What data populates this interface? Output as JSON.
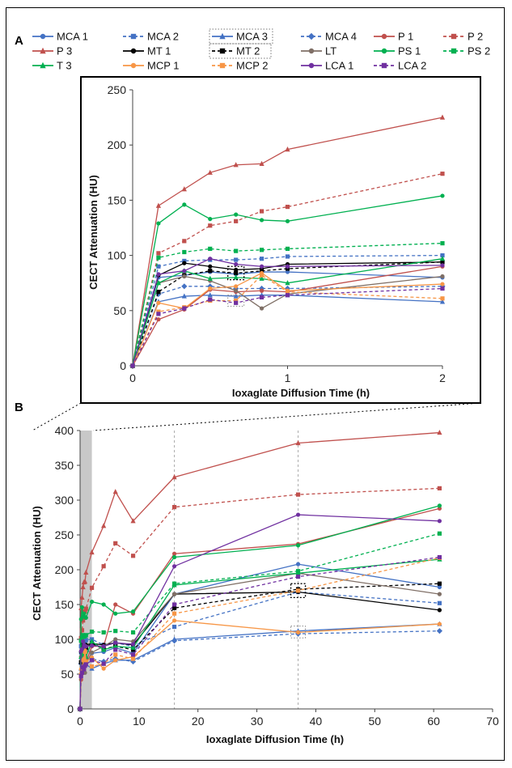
{
  "chart_data": [
    {
      "panel_label": "A",
      "type": "line",
      "xlabel": "Ioxaglate Diffusion Time (h)",
      "ylabel": "CECT Attenuation (HU)",
      "xlim": [
        0,
        2
      ],
      "ylim": [
        0,
        250
      ],
      "xticks": [
        "0",
        "1",
        "2"
      ],
      "yticks": [
        "0",
        "50",
        "100",
        "150",
        "200",
        "250"
      ],
      "grid": false,
      "legend_position": "top",
      "x": [
        0,
        0.1667,
        0.3333,
        0.5,
        0.6667,
        0.8333,
        1,
        2
      ],
      "series": [
        {
          "name": "MCA 1",
          "color": "#4472c4",
          "dash": false,
          "marker": "circle",
          "values": [
            0,
            80,
            82,
            85,
            83,
            85,
            85,
            80
          ]
        },
        {
          "name": "MCA 2",
          "color": "#4472c4",
          "dash": true,
          "marker": "square",
          "values": [
            0,
            90,
            95,
            96,
            96,
            97,
            99,
            100
          ]
        },
        {
          "name": "MCA 3",
          "color": "#4472c4",
          "dash": false,
          "marker": "triangle",
          "values": [
            0,
            58,
            63,
            64,
            63,
            64,
            64,
            58
          ]
        },
        {
          "name": "MCA 4",
          "color": "#4472c4",
          "dash": true,
          "marker": "diamond",
          "values": [
            0,
            65,
            72,
            72,
            70,
            70,
            70,
            72
          ]
        },
        {
          "name": "P 1",
          "color": "#c0504d",
          "dash": false,
          "marker": "circle",
          "values": [
            0,
            42,
            51,
            69,
            67,
            68,
            67,
            90
          ]
        },
        {
          "name": "P 2",
          "color": "#c0504d",
          "dash": true,
          "marker": "square",
          "values": [
            0,
            102,
            113,
            127,
            131,
            140,
            144,
            174
          ]
        },
        {
          "name": "P 3",
          "color": "#c0504d",
          "dash": false,
          "marker": "triangle",
          "values": [
            0,
            145,
            160,
            175,
            182,
            183,
            196,
            225
          ]
        },
        {
          "name": "MT 1",
          "color": "#000000",
          "dash": false,
          "marker": "circle",
          "values": [
            0,
            82,
            93,
            90,
            87,
            88,
            92,
            94
          ]
        },
        {
          "name": "MT 2",
          "color": "#000000",
          "dash": true,
          "marker": "square",
          "values": [
            0,
            67,
            82,
            86,
            84,
            86,
            88,
            94
          ]
        },
        {
          "name": "LT",
          "color": "#7f6f66",
          "dash": false,
          "marker": "circle",
          "values": [
            0,
            75,
            81,
            77,
            68,
            52,
            65,
            81
          ]
        },
        {
          "name": "PS 1",
          "color": "#00b050",
          "dash": false,
          "marker": "circle",
          "values": [
            0,
            129,
            146,
            133,
            137,
            132,
            131,
            154
          ]
        },
        {
          "name": "PS 2",
          "color": "#00b050",
          "dash": true,
          "marker": "square",
          "values": [
            0,
            98,
            103,
            106,
            104,
            105,
            106,
            111
          ]
        },
        {
          "name": "T 3",
          "color": "#00b050",
          "dash": false,
          "marker": "triangle",
          "values": [
            0,
            75,
            86,
            79,
            80,
            79,
            75,
            97
          ]
        },
        {
          "name": "MCP 1",
          "color": "#f79646",
          "dash": false,
          "marker": "circle",
          "values": [
            0,
            57,
            52,
            70,
            72,
            84,
            68,
            74
          ]
        },
        {
          "name": "MCP 2",
          "color": "#f79646",
          "dash": true,
          "marker": "square",
          "values": [
            0,
            49,
            53,
            59,
            59,
            82,
            67,
            61
          ]
        },
        {
          "name": "LCA 1",
          "color": "#7030a0",
          "dash": false,
          "marker": "circle",
          "values": [
            0,
            83,
            86,
            97,
            92,
            90,
            90,
            91
          ]
        },
        {
          "name": "LCA 2",
          "color": "#7030a0",
          "dash": true,
          "marker": "square",
          "values": [
            0,
            47,
            52,
            60,
            57,
            62,
            64,
            70
          ]
        }
      ]
    },
    {
      "panel_label": "B",
      "type": "line",
      "xlabel": "Ioxaglate Diffusion Time (h)",
      "ylabel": "CECT Attenuation (HU)",
      "xlim": [
        0,
        70
      ],
      "ylim": [
        0,
        400
      ],
      "xticks": [
        "0",
        "10",
        "20",
        "30",
        "40",
        "50",
        "60",
        "70"
      ],
      "yticks": [
        "0",
        "50",
        "100",
        "150",
        "200",
        "250",
        "300",
        "350",
        "400"
      ],
      "grid": false,
      "x": [
        0,
        0.1667,
        0.3333,
        0.5,
        0.6667,
        0.8333,
        1,
        2,
        4,
        6,
        9,
        16,
        37,
        61
      ],
      "series": [
        {
          "name": "MCA 1",
          "values": [
            0,
            80,
            82,
            85,
            83,
            85,
            85,
            80,
            82,
            88,
            80,
            165,
            208,
            175
          ]
        },
        {
          "name": "MCA 2",
          "values": [
            0,
            90,
            95,
            96,
            96,
            97,
            99,
            100,
            92,
            95,
            90,
            118,
            168,
            152
          ]
        },
        {
          "name": "MCA 3",
          "values": [
            0,
            58,
            63,
            64,
            63,
            64,
            64,
            58,
            65,
            70,
            70,
            100,
            112,
            122
          ]
        },
        {
          "name": "MCA 4",
          "values": [
            0,
            65,
            72,
            72,
            70,
            70,
            70,
            72,
            68,
            72,
            68,
            98,
            108,
            112
          ]
        },
        {
          "name": "P 1",
          "values": [
            0,
            42,
            51,
            69,
            67,
            68,
            67,
            90,
            90,
            150,
            137,
            223,
            237,
            288
          ]
        },
        {
          "name": "P 2",
          "values": [
            0,
            102,
            113,
            127,
            131,
            140,
            144,
            174,
            205,
            238,
            220,
            290,
            308,
            317
          ]
        },
        {
          "name": "P 3",
          "values": [
            0,
            145,
            160,
            175,
            182,
            183,
            196,
            225,
            263,
            312,
            270,
            333,
            382,
            397
          ]
        },
        {
          "name": "MT 1",
          "values": [
            0,
            82,
            93,
            90,
            87,
            88,
            92,
            94,
            92,
            95,
            92,
            165,
            168,
            142
          ]
        },
        {
          "name": "MT 2",
          "values": [
            0,
            67,
            82,
            86,
            84,
            86,
            88,
            94,
            86,
            90,
            85,
            145,
            172,
            180
          ]
        },
        {
          "name": "LT",
          "values": [
            0,
            75,
            81,
            77,
            68,
            52,
            65,
            81,
            90,
            100,
            97,
            165,
            195,
            165
          ]
        },
        {
          "name": "PS 1",
          "values": [
            0,
            129,
            146,
            133,
            137,
            132,
            131,
            154,
            150,
            137,
            140,
            218,
            235,
            292
          ]
        },
        {
          "name": "PS 2",
          "values": [
            0,
            98,
            103,
            106,
            104,
            105,
            106,
            111,
            110,
            112,
            110,
            180,
            198,
            252
          ]
        },
        {
          "name": "T 3",
          "values": [
            0,
            75,
            86,
            79,
            80,
            79,
            75,
            97,
            85,
            90,
            88,
            178,
            195,
            215
          ]
        },
        {
          "name": "MCP 1",
          "values": [
            0,
            57,
            52,
            70,
            72,
            84,
            68,
            74,
            58,
            70,
            75,
            127,
            110,
            122
          ]
        },
        {
          "name": "MCP 2",
          "values": [
            0,
            49,
            53,
            59,
            59,
            82,
            67,
            61,
            65,
            78,
            72,
            137,
            170,
            217
          ]
        },
        {
          "name": "LCA 1",
          "values": [
            0,
            83,
            86,
            97,
            92,
            90,
            90,
            91,
            90,
            95,
            93,
            205,
            279,
            270
          ]
        },
        {
          "name": "LCA 2",
          "values": [
            0,
            47,
            52,
            60,
            57,
            62,
            64,
            70,
            65,
            85,
            78,
            150,
            190,
            218
          ]
        }
      ]
    }
  ]
}
